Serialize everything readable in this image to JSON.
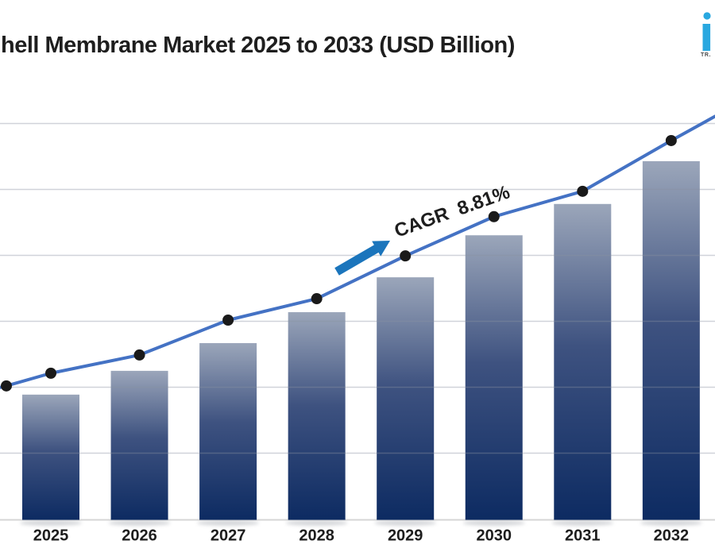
{
  "title": "hell Membrane Market 2025 to 2033 (USD Billion)",
  "logo": {
    "tr_label": "TR.",
    "i_color": "#29a8e0",
    "tr_color": "#4a4a4a"
  },
  "colors": {
    "bar_top": "#9ba6ba",
    "bar_mid": "#3e5280",
    "bar_bottom": "#0d2b62",
    "trend_line": "#4472c4",
    "marker": "#1a1a1a",
    "gridline_over": "rgba(138,146,160,0.40)",
    "axis_line": "#d6d6d6",
    "arrow": "#1b75bc",
    "title_text": "#1e1e1e",
    "axis_label": "#1d1d1d",
    "shadow": "#8a8f98"
  },
  "chart_data": {
    "type": "combo_bar_line",
    "title": "hell Membrane Market 2025 to 2033 (USD Billion)",
    "categories": [
      "2025",
      "2026",
      "2027",
      "2028",
      "2029",
      "2030",
      "2031",
      "2032"
    ],
    "note": "No numeric value axis is rendered; values are bar/marker heights normalized to plot height (0 = x-axis baseline, 1 = top gridline). Chart continues toward 2033 but is cropped at the right edge; title is cropped at the left edge.",
    "series": [
      {
        "name": "market-size-bars",
        "type": "bar",
        "values_norm": [
          0.316,
          0.376,
          0.446,
          0.524,
          0.612,
          0.718,
          0.797,
          0.905
        ]
      },
      {
        "name": "trend-line",
        "type": "line",
        "values_norm": [
          0.37,
          0.416,
          0.504,
          0.558,
          0.666,
          0.765,
          0.829,
          0.957
        ],
        "edge_marker_left_norm": 0.338,
        "line_start_left_norm": 0.334,
        "line_exit_right_norm": 1.018
      }
    ],
    "annotation": {
      "cagr_label": "CAGR  8.81%",
      "cagr_value": "8.81%"
    },
    "x_axis": {
      "tick_labels_shown": [
        "2025",
        "2026",
        "2027",
        "2028",
        "2029",
        "2030",
        "2031",
        "2032"
      ],
      "numeric_labels": "none"
    },
    "gridlines": {
      "horizontal_count": 7,
      "value_labels": "none"
    },
    "legend": "none"
  }
}
